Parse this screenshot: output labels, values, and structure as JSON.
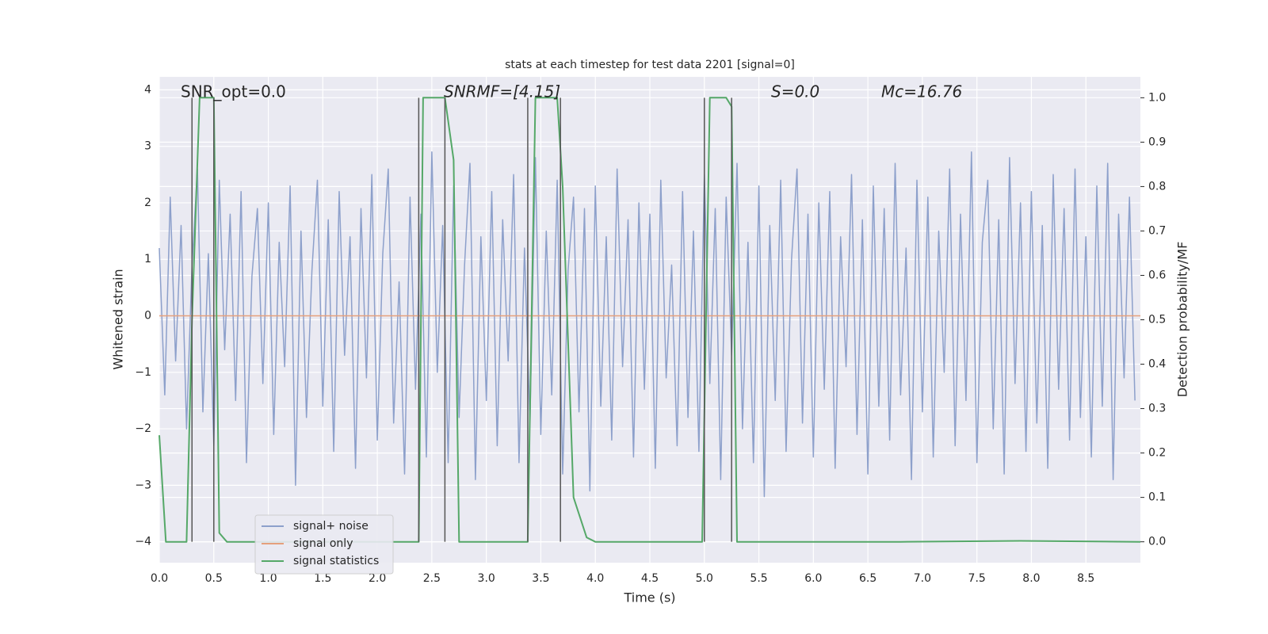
{
  "chart_data": {
    "type": "line",
    "title": "stats at each timestep for test data 2201 [signal=0]",
    "xlabel": "Time (s)",
    "ylabel": "Whitened strain",
    "y2label": "Detection probability/MF",
    "annotations": [
      "SNR_opt=0.0",
      "SNRMF=[4.15]",
      "S=0.0",
      "Mc=16.76"
    ],
    "xlim": [
      0,
      9.0
    ],
    "ylim": [
      -4.37,
      4.23
    ],
    "y2lim": [
      -0.047,
      1.047
    ],
    "xticks": [
      {
        "value": 0,
        "label": "0.0"
      },
      0.5,
      {
        "value": 1,
        "label": "1.0"
      },
      1.5,
      {
        "value": 2,
        "label": "2.0"
      },
      2.5,
      {
        "value": 3,
        "label": "3.0"
      },
      3.5,
      {
        "value": 4,
        "label": "4.0"
      },
      4.5,
      {
        "value": 5,
        "label": "5.0"
      },
      5.5,
      {
        "value": 6,
        "label": "6.0"
      },
      6.5,
      {
        "value": 7,
        "label": "7.0"
      },
      7.5,
      {
        "value": 8,
        "label": "8.0"
      },
      8.5
    ],
    "yticks": [
      {
        "value": -4,
        "label": "−4"
      },
      {
        "value": -3,
        "label": "−3"
      },
      {
        "value": -2,
        "label": "−2"
      },
      {
        "value": -1,
        "label": "−1"
      },
      0,
      1,
      2,
      3,
      4
    ],
    "y2ticks": [
      {
        "value": 0,
        "label": "0.0"
      },
      0.1,
      0.2,
      0.3,
      0.4,
      0.5,
      0.6,
      0.7,
      0.8,
      0.9,
      {
        "value": 1,
        "label": "1.0"
      }
    ],
    "grid": true,
    "legend": "lower left",
    "series": [
      {
        "name": "signal+ noise",
        "color": "#8da0cb",
        "x": [
          0,
          0.05,
          0.1,
          0.15,
          0.2,
          0.25,
          0.3,
          0.35,
          0.4,
          0.45,
          0.5,
          0.55,
          0.6,
          0.65,
          0.7,
          0.75,
          0.8,
          0.85,
          0.9,
          0.95,
          1,
          1.05,
          1.1,
          1.15,
          1.2,
          1.25,
          1.3,
          1.35,
          1.4,
          1.45,
          1.5,
          1.55,
          1.6,
          1.65,
          1.7,
          1.75,
          1.8,
          1.85,
          1.9,
          1.95,
          2,
          2.05,
          2.1,
          2.15,
          2.2,
          2.25,
          2.3,
          2.35,
          2.4,
          2.45,
          2.5,
          2.55,
          2.6,
          2.65,
          2.7,
          2.75,
          2.8,
          2.85,
          2.9,
          2.95,
          3,
          3.05,
          3.1,
          3.15,
          3.2,
          3.25,
          3.3,
          3.35,
          3.4,
          3.45,
          3.5,
          3.55,
          3.6,
          3.65,
          3.7,
          3.75,
          3.8,
          3.85,
          3.9,
          3.95,
          4,
          4.05,
          4.1,
          4.15,
          4.2,
          4.25,
          4.3,
          4.35,
          4.4,
          4.45,
          4.5,
          4.55,
          4.6,
          4.65,
          4.7,
          4.75,
          4.8,
          4.85,
          4.9,
          4.95,
          5,
          5.05,
          5.1,
          5.15,
          5.2,
          5.25,
          5.3,
          5.35,
          5.4,
          5.45,
          5.5,
          5.55,
          5.6,
          5.65,
          5.7,
          5.75,
          5.8,
          5.85,
          5.9,
          5.95,
          6,
          6.05,
          6.1,
          6.15,
          6.2,
          6.25,
          6.3,
          6.35,
          6.4,
          6.45,
          6.5,
          6.55,
          6.6,
          6.65,
          6.7,
          6.75,
          6.8,
          6.85,
          6.9,
          6.95,
          7,
          7.05,
          7.1,
          7.15,
          7.2,
          7.25,
          7.3,
          7.35,
          7.4,
          7.45,
          7.5,
          7.55,
          7.6,
          7.65,
          7.7,
          7.75,
          7.8,
          7.85,
          7.9,
          7.95,
          8,
          8.05,
          8.1,
          8.15,
          8.2,
          8.25,
          8.3,
          8.35,
          8.4,
          8.45,
          8.5,
          8.55,
          8.6,
          8.65,
          8.7,
          8.75,
          8.8,
          8.85,
          8.9,
          8.95
        ],
        "values": [
          1.2,
          -1.4,
          2.1,
          -0.8,
          1.6,
          -2.0,
          0.9,
          2.6,
          -1.7,
          1.1,
          -2.3,
          2.4,
          -0.6,
          1.8,
          -1.5,
          2.2,
          -2.6,
          0.7,
          1.9,
          -1.2,
          2.0,
          -2.1,
          1.3,
          -0.9,
          2.3,
          -3.0,
          1.5,
          -1.8,
          0.8,
          2.4,
          -1.6,
          1.7,
          -2.4,
          2.2,
          -0.7,
          1.4,
          -2.7,
          1.9,
          -1.1,
          2.5,
          -2.2,
          1.1,
          2.6,
          -1.9,
          0.6,
          -2.8,
          2.1,
          -1.3,
          1.8,
          -2.5,
          2.9,
          -1.0,
          1.6,
          -2.6,
          2.3,
          -1.8,
          0.9,
          2.7,
          -2.9,
          1.4,
          -1.5,
          2.2,
          -2.3,
          1.7,
          -0.8,
          2.5,
          -2.6,
          1.2,
          -1.9,
          2.8,
          -2.1,
          1.5,
          -1.4,
          2.4,
          -2.8,
          0.8,
          2.1,
          -1.7,
          1.9,
          -3.1,
          2.3,
          -1.6,
          1.4,
          -2.2,
          2.6,
          -0.9,
          1.7,
          -2.5,
          2.0,
          -1.3,
          1.8,
          -2.7,
          2.4,
          -1.1,
          0.9,
          -2.3,
          2.2,
          -1.8,
          1.5,
          -2.4,
          2.5,
          -1.2,
          1.9,
          -2.9,
          2.1,
          -0.7,
          2.7,
          -2.0,
          1.3,
          -2.6,
          2.3,
          -3.2,
          1.6,
          -1.5,
          2.4,
          -2.4,
          1.0,
          2.6,
          -1.9,
          1.8,
          -2.5,
          2.0,
          -1.3,
          2.2,
          -2.7,
          1.4,
          -0.9,
          2.5,
          -2.1,
          1.7,
          -2.8,
          2.3,
          -1.6,
          1.9,
          -2.2,
          2.7,
          -1.4,
          1.2,
          -2.9,
          2.4,
          -1.7,
          2.1,
          -2.5,
          1.5,
          -1.0,
          2.6,
          -2.3,
          1.8,
          -1.5,
          2.9,
          -2.6,
          1.3,
          2.4,
          -2.0,
          1.7,
          -2.8,
          2.8,
          -1.2,
          2.0,
          -2.4,
          2.2,
          -1.9,
          1.6,
          -2.7,
          2.5,
          -1.3,
          1.9,
          -2.2,
          2.6,
          -1.8,
          1.4,
          -2.5,
          2.3,
          -1.6,
          2.7,
          -2.9,
          1.8,
          -1.1,
          2.1,
          -1.5
        ]
      },
      {
        "name": "signal only",
        "color": "#e5a07c",
        "x": [
          0,
          9.0
        ],
        "values": [
          0,
          0
        ]
      },
      {
        "name": "signal statistics",
        "color": "#55a868",
        "axis": "y2",
        "x": [
          0,
          0.06,
          0.25,
          0.3,
          0.37,
          0.5,
          0.55,
          0.62,
          2.38,
          2.42,
          2.62,
          2.7,
          2.75,
          3.38,
          3.45,
          3.65,
          3.7,
          3.8,
          3.92,
          4.0,
          4.98,
          5.05,
          5.2,
          5.25,
          5.3,
          6.8,
          7.9,
          9.0
        ],
        "values": [
          0.24,
          0,
          0,
          0.5,
          1,
          1,
          0.02,
          0,
          0,
          1,
          1,
          0.86,
          0,
          0,
          1,
          1,
          0.8,
          0.1,
          0.01,
          0,
          0,
          1,
          1,
          0.98,
          0,
          0,
          0.002,
          0
        ]
      }
    ],
    "vlines": {
      "color": "#555555",
      "x": [
        0.3,
        0.5,
        2.38,
        2.62,
        3.38,
        3.68,
        5.0,
        5.25
      ],
      "y2": [
        0,
        1
      ]
    }
  }
}
